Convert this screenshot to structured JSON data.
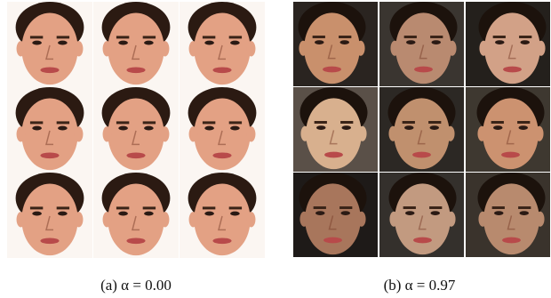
{
  "figure": {
    "panels": [
      {
        "caption": "(a) α = 0.00"
      },
      {
        "caption": "(b) α = 0.97"
      }
    ]
  }
}
